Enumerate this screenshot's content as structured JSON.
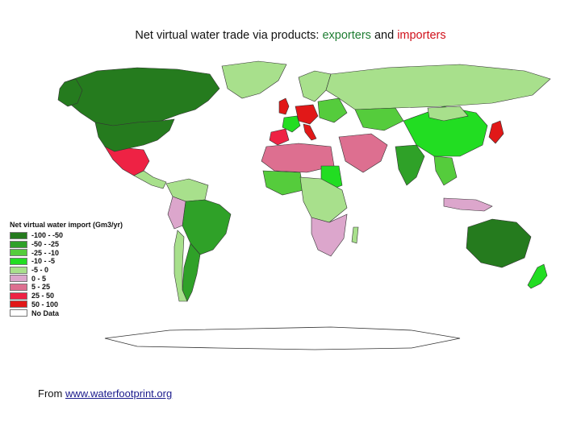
{
  "title": {
    "prefix": "Net virtual water trade via products:",
    "exporters": "exporters",
    "and": "and",
    "importers": "importers"
  },
  "colors": {
    "exporters": "#1e7d32",
    "importers": "#d0101a"
  },
  "legend": {
    "title": "Net virtual water import (Gm3/yr)",
    "items": [
      {
        "label": "-100 - -50",
        "color": "#257b1e"
      },
      {
        "label": "-50 - -25",
        "color": "#2fa128"
      },
      {
        "label": "-25 - -10",
        "color": "#55cc3c"
      },
      {
        "label": "-10 - -5",
        "color": "#22dd22"
      },
      {
        "label": "-5 - 0",
        "color": "#a8e08c"
      },
      {
        "label": "0 - 5",
        "color": "#dca6cc"
      },
      {
        "label": "5 - 25",
        "color": "#dd6f90"
      },
      {
        "label": "25 - 50",
        "color": "#ee2244"
      },
      {
        "label": "50 - 100",
        "color": "#e11818"
      },
      {
        "label": "No Data",
        "color": "#ffffff"
      }
    ]
  },
  "footer": {
    "prefix": "From",
    "link": "www.waterfootprint.org"
  }
}
